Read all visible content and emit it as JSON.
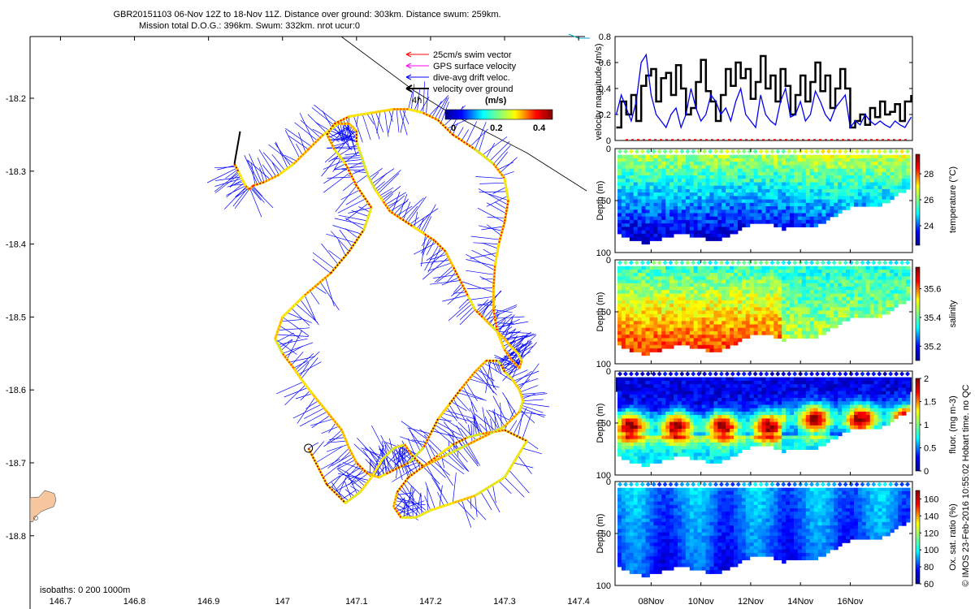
{
  "figure": {
    "title_line1": "GBR20151103 06-Nov 12Z to 18-Nov 11Z. Distance over ground: 303km. Distance swum: 259km.",
    "title_line2": "Mission total D.O.G.: 396km. Swum: 332km. nrot ucur:0",
    "side_note": "© IMOS 23-Feb-2016 10:55:02 Hobart time. no QC"
  },
  "colors": {
    "swim": "#ff0000",
    "gps": "#ff00ff",
    "drift": "#0000ff",
    "ground": "#000000",
    "land": "#f6c79e",
    "speed_black": "#000000",
    "speed_blue": "#0000ee"
  },
  "chart_data": [
    {
      "type": "line",
      "name": "glider-track-map",
      "xlabel": "",
      "ylabel": "",
      "xlim": [
        146.66,
        147.45
      ],
      "ylim": [
        -18.86,
        -18.12
      ],
      "x_ticks": [
        "146.7",
        "146.8",
        "146.9",
        "147",
        "147.1",
        "147.2",
        "147.3",
        "147.4"
      ],
      "x_tick_values": [
        146.7,
        146.8,
        146.9,
        147.0,
        147.1,
        147.2,
        147.3,
        147.4
      ],
      "y_ticks": [
        "-18.2",
        "-18.3",
        "-18.4",
        "-18.5",
        "-18.6",
        "-18.7",
        "-18.8"
      ],
      "y_tick_values": [
        -18.2,
        -18.3,
        -18.4,
        -18.5,
        -18.6,
        -18.7,
        -18.8
      ],
      "legend": {
        "swim": "25cm/s swim vector",
        "gps": "GPS surface velocity",
        "drift": "dive-avg drift veloc.",
        "ground": "velocity over ground"
      },
      "legend_placement": "top-right",
      "colorbar": {
        "label": "(m/s)",
        "ticks": [
          "0",
          "0.2",
          "0.4"
        ],
        "tick_values": [
          0,
          0.2,
          0.4
        ],
        "range": [
          0,
          0.5
        ]
      },
      "annotations": {
        "interval": "4h",
        "isobaths": "isobaths: 0   200  1000m",
        "start_marker": [
          147.035,
          -18.68
        ]
      },
      "track": {
        "lon": [
          147.035,
          147.06,
          147.085,
          147.105,
          147.12,
          147.135,
          147.15,
          147.165,
          147.175,
          147.19,
          147.21,
          147.23,
          147.25,
          147.27,
          147.3,
          147.33,
          147.3,
          147.26,
          147.23,
          147.2,
          147.18,
          147.16,
          147.15,
          147.155,
          147.17,
          147.19,
          147.22,
          147.25,
          147.28,
          147.3,
          147.32,
          147.325,
          147.32,
          147.31,
          147.3,
          147.295,
          147.29,
          147.275,
          147.26,
          147.24,
          147.225,
          147.21,
          147.2,
          147.19,
          147.17,
          147.15,
          147.14,
          147.13,
          147.115,
          147.1,
          147.09,
          147.08,
          147.06,
          147.04,
          147.025,
          147.015,
          147.0,
          146.99,
          147.0,
          147.03,
          147.065,
          147.09,
          147.11,
          147.12,
          147.1,
          147.085,
          147.07,
          147.06,
          147.07,
          147.09,
          147.12,
          147.15,
          147.17,
          147.19,
          147.21,
          147.23,
          147.26,
          147.285,
          147.3,
          147.305,
          147.3,
          147.292,
          147.287,
          147.285,
          147.285,
          147.29,
          147.3,
          147.31,
          147.32,
          147.323,
          147.318,
          147.308,
          147.3,
          147.29,
          147.28,
          147.27,
          147.26,
          147.25,
          147.24,
          147.23,
          147.22,
          147.205,
          147.19,
          147.175,
          147.16,
          147.145,
          147.135,
          147.125,
          147.115,
          147.11,
          147.105,
          147.1,
          147.1,
          147.09,
          147.075,
          147.055,
          147.035,
          147.015,
          146.995,
          146.975,
          146.96,
          146.955,
          146.95,
          146.945,
          146.94,
          146.935
        ],
        "lat": [
          -18.68,
          -18.73,
          -18.755,
          -18.74,
          -18.72,
          -18.695,
          -18.68,
          -18.675,
          -18.69,
          -18.705,
          -18.69,
          -18.675,
          -18.665,
          -18.66,
          -18.655,
          -18.67,
          -18.72,
          -18.745,
          -18.755,
          -18.765,
          -18.775,
          -18.775,
          -18.76,
          -18.74,
          -18.72,
          -18.705,
          -18.69,
          -18.675,
          -18.66,
          -18.65,
          -18.63,
          -18.615,
          -18.6,
          -18.585,
          -18.575,
          -18.565,
          -18.56,
          -18.56,
          -18.575,
          -18.6,
          -18.62,
          -18.64,
          -18.66,
          -18.68,
          -18.7,
          -18.71,
          -18.715,
          -18.72,
          -18.715,
          -18.7,
          -18.68,
          -18.655,
          -18.63,
          -18.605,
          -18.585,
          -18.57,
          -18.55,
          -18.53,
          -18.5,
          -18.47,
          -18.44,
          -18.41,
          -18.38,
          -18.35,
          -18.32,
          -18.29,
          -18.27,
          -18.25,
          -18.235,
          -18.225,
          -18.22,
          -18.215,
          -18.215,
          -18.22,
          -18.23,
          -18.25,
          -18.27,
          -18.29,
          -18.31,
          -18.34,
          -18.37,
          -18.4,
          -18.43,
          -18.46,
          -18.49,
          -18.52,
          -18.545,
          -18.56,
          -18.57,
          -18.56,
          -18.55,
          -18.54,
          -18.53,
          -18.52,
          -18.51,
          -18.5,
          -18.49,
          -18.47,
          -18.45,
          -18.43,
          -18.41,
          -18.395,
          -18.385,
          -18.375,
          -18.365,
          -18.355,
          -18.34,
          -18.325,
          -18.305,
          -18.29,
          -18.275,
          -18.26,
          -18.245,
          -18.235,
          -18.235,
          -18.25,
          -18.27,
          -18.29,
          -18.305,
          -18.315,
          -18.32,
          -18.325,
          -18.32,
          -18.31,
          -18.3,
          -18.29
        ]
      }
    },
    {
      "type": "line",
      "name": "velocity-magnitude",
      "ylabel": "velocity magnitude (m/s)",
      "ylim": [
        0,
        0.8
      ],
      "y_ticks": [
        "0",
        "0.2",
        "0.4",
        "0.6",
        "0.8"
      ],
      "y_tick_values": [
        0,
        0.2,
        0.4,
        0.6,
        0.8
      ],
      "xlim": [
        6.55,
        18.5
      ],
      "series": [
        {
          "name": "velocity over ground",
          "color": "#000000",
          "x": [
            6.6,
            6.8,
            7.0,
            7.2,
            7.4,
            7.6,
            7.8,
            8.0,
            8.2,
            8.4,
            8.6,
            8.8,
            9.0,
            9.2,
            9.4,
            9.6,
            9.8,
            10.0,
            10.2,
            10.4,
            10.6,
            10.8,
            11.0,
            11.2,
            11.4,
            11.6,
            11.8,
            12.0,
            12.2,
            12.4,
            12.6,
            12.8,
            13.0,
            13.2,
            13.4,
            13.6,
            13.8,
            14.0,
            14.2,
            14.4,
            14.6,
            14.8,
            15.0,
            15.2,
            15.4,
            15.6,
            15.8,
            16.0,
            16.2,
            16.4,
            16.6,
            16.8,
            17.0,
            17.2,
            17.4,
            17.6,
            17.8,
            18.0,
            18.2,
            18.45
          ],
          "y": [
            0.1,
            0.3,
            0.2,
            0.35,
            0.15,
            0.42,
            0.5,
            0.55,
            0.3,
            0.48,
            0.52,
            0.35,
            0.58,
            0.4,
            0.2,
            0.25,
            0.45,
            0.62,
            0.38,
            0.3,
            0.15,
            0.35,
            0.55,
            0.42,
            0.6,
            0.48,
            0.55,
            0.32,
            0.45,
            0.65,
            0.4,
            0.5,
            0.3,
            0.55,
            0.42,
            0.2,
            0.35,
            0.5,
            0.3,
            0.45,
            0.6,
            0.38,
            0.5,
            0.25,
            0.4,
            0.55,
            0.4,
            0.1,
            0.15,
            0.2,
            0.12,
            0.25,
            0.18,
            0.3,
            0.2,
            0.22,
            0.28,
            0.15,
            0.3,
            0.35
          ]
        },
        {
          "name": "dive-avg drift veloc.",
          "color": "#0000ee",
          "x": [
            6.6,
            6.8,
            7.0,
            7.2,
            7.4,
            7.6,
            7.8,
            8.0,
            8.2,
            8.4,
            8.6,
            8.8,
            9.0,
            9.2,
            9.4,
            9.6,
            9.8,
            10.0,
            10.2,
            10.4,
            10.6,
            10.8,
            11.0,
            11.2,
            11.4,
            11.6,
            11.8,
            12.0,
            12.2,
            12.4,
            12.6,
            12.8,
            13.0,
            13.2,
            13.4,
            13.6,
            13.8,
            14.0,
            14.2,
            14.4,
            14.6,
            14.8,
            15.0,
            15.2,
            15.4,
            15.6,
            15.8,
            16.0,
            16.2,
            16.4,
            16.6,
            16.8,
            17.0,
            17.2,
            17.4,
            17.6,
            17.8,
            18.0,
            18.2,
            18.45
          ],
          "y": [
            0.2,
            0.35,
            0.25,
            0.15,
            0.3,
            0.6,
            0.66,
            0.35,
            0.2,
            0.15,
            0.1,
            0.2,
            0.25,
            0.1,
            0.2,
            0.4,
            0.25,
            0.15,
            0.2,
            0.35,
            0.3,
            0.2,
            0.25,
            0.15,
            0.3,
            0.4,
            0.2,
            0.15,
            0.1,
            0.35,
            0.2,
            0.15,
            0.12,
            0.3,
            0.4,
            0.18,
            0.2,
            0.3,
            0.15,
            0.2,
            0.38,
            0.3,
            0.2,
            0.15,
            0.25,
            0.3,
            0.35,
            0.1,
            0.15,
            0.12,
            0.2,
            0.15,
            0.12,
            0.15,
            0.12,
            0.1,
            0.15,
            0.12,
            0.1,
            0.18
          ]
        }
      ]
    },
    {
      "type": "heatmap",
      "name": "temperature",
      "ylabel": "Depth (m)",
      "colorbar_label": "temperature (°C)",
      "y_ticks": [
        "0",
        "50",
        "100"
      ],
      "y_tick_values": [
        0,
        50,
        100
      ],
      "ylim": [
        100,
        0
      ],
      "clim": [
        22.5,
        29.5
      ],
      "colorbar_ticks": [
        "24",
        "26",
        "28"
      ],
      "colorbar_tick_values": [
        24,
        26,
        28
      ]
    },
    {
      "type": "heatmap",
      "name": "salinity",
      "ylabel": "Depth (m)",
      "colorbar_label": "salinity",
      "y_ticks": [
        "0",
        "50",
        "100"
      ],
      "y_tick_values": [
        0,
        50,
        100
      ],
      "ylim": [
        100,
        0
      ],
      "clim": [
        35.1,
        35.75
      ],
      "colorbar_ticks": [
        "35.2",
        "35.4",
        "35.6"
      ],
      "colorbar_tick_values": [
        35.2,
        35.4,
        35.6
      ]
    },
    {
      "type": "heatmap",
      "name": "fluorescence",
      "ylabel": "Depth (m)",
      "colorbar_label": "fluor. (mg m-3)",
      "y_ticks": [
        "0",
        "50",
        "100"
      ],
      "y_tick_values": [
        0,
        50,
        100
      ],
      "ylim": [
        100,
        0
      ],
      "clim": [
        0,
        2
      ],
      "colorbar_ticks": [
        "0",
        "0.5",
        "1",
        "1.5",
        "2"
      ],
      "colorbar_tick_values": [
        0,
        0.5,
        1,
        1.5,
        2
      ]
    },
    {
      "type": "heatmap",
      "name": "oxygen",
      "ylabel": "Depth (m)",
      "colorbar_label": "Ox. sat. ratio (%)",
      "y_ticks": [
        "0",
        "50",
        "100"
      ],
      "y_tick_values": [
        0,
        50,
        100
      ],
      "ylim": [
        100,
        0
      ],
      "clim": [
        60,
        170
      ],
      "colorbar_ticks": [
        "60",
        "80",
        "100",
        "120",
        "140",
        "160"
      ],
      "colorbar_tick_values": [
        60,
        80,
        100,
        120,
        140,
        160
      ],
      "x_ticks": [
        "08Nov",
        "10Nov",
        "12Nov",
        "14Nov",
        "16Nov"
      ],
      "x_tick_values": [
        8,
        10,
        12,
        14,
        16
      ],
      "xlim": [
        6.55,
        18.5
      ]
    }
  ]
}
